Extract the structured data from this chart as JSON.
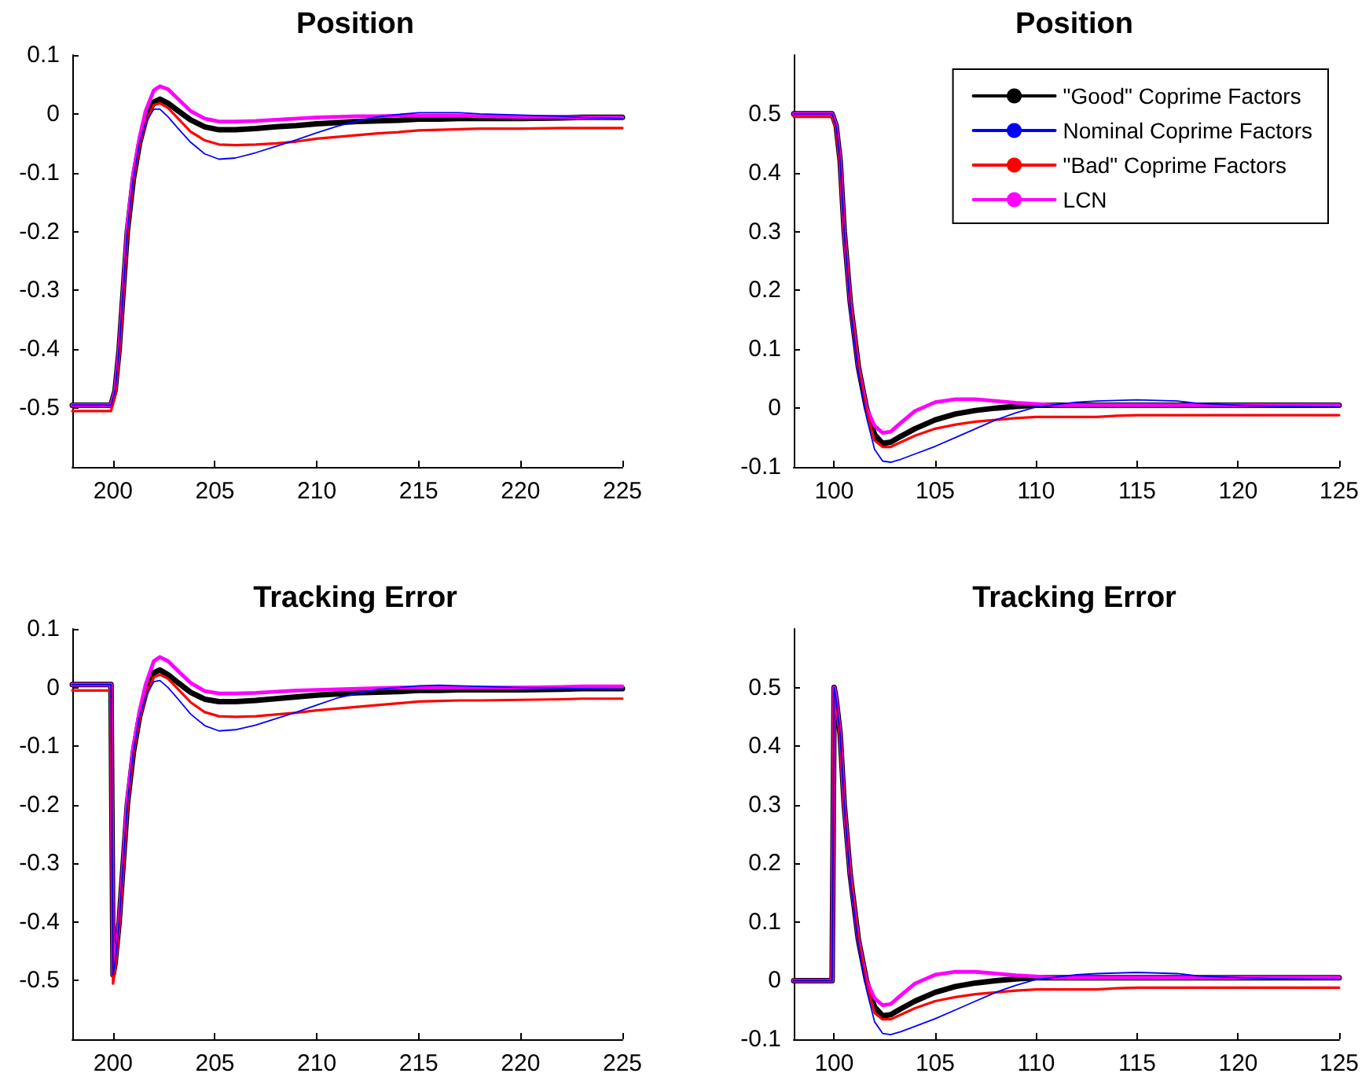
{
  "chart_data": [
    {
      "type": "line",
      "title": "Position",
      "xlim": [
        198,
        225
      ],
      "xticks": [
        200,
        205,
        210,
        215,
        220,
        225
      ],
      "ylim": [
        -0.6,
        0.1
      ],
      "yticks": [
        -0.5,
        -0.4,
        -0.3,
        -0.2,
        -0.1,
        0,
        0.1
      ],
      "grid": false,
      "marker": "none",
      "line_style": "solid",
      "x": [
        198,
        199.9,
        200.1,
        200.3,
        200.5,
        200.7,
        201,
        201.3,
        201.6,
        202,
        202.3,
        202.7,
        203.2,
        203.8,
        204.5,
        205.2,
        206,
        207,
        208,
        209,
        210,
        211,
        212,
        213,
        214,
        215,
        216,
        217,
        218,
        220,
        222,
        223,
        225
      ],
      "series": [
        {
          "color": "#000000",
          "values": [
            -0.495,
            -0.495,
            -0.47,
            -0.4,
            -0.3,
            -0.2,
            -0.11,
            -0.05,
            -0.01,
            0.02,
            0.025,
            0.018,
            0.005,
            -0.01,
            -0.022,
            -0.027,
            -0.027,
            -0.025,
            -0.022,
            -0.02,
            -0.017,
            -0.015,
            -0.013,
            -0.012,
            -0.011,
            -0.009,
            -0.009,
            -0.008,
            -0.008,
            -0.008,
            -0.007,
            -0.006,
            -0.006
          ]
        },
        {
          "color": "#0000ff",
          "values": [
            -0.495,
            -0.495,
            -0.47,
            -0.4,
            -0.3,
            -0.2,
            -0.11,
            -0.05,
            -0.015,
            0.008,
            0.008,
            -0.005,
            -0.025,
            -0.048,
            -0.068,
            -0.077,
            -0.075,
            -0.066,
            -0.055,
            -0.044,
            -0.032,
            -0.021,
            -0.012,
            -0.005,
            -0.001,
            0.002,
            0.002,
            0.002,
            0,
            -0.002,
            -0.004,
            -0.006,
            -0.008
          ]
        },
        {
          "color": "#ff0000",
          "values": [
            -0.505,
            -0.505,
            -0.48,
            -0.41,
            -0.31,
            -0.21,
            -0.115,
            -0.055,
            -0.015,
            0.015,
            0.018,
            0.01,
            -0.008,
            -0.03,
            -0.045,
            -0.052,
            -0.053,
            -0.052,
            -0.05,
            -0.047,
            -0.042,
            -0.039,
            -0.036,
            -0.033,
            -0.031,
            -0.028,
            -0.027,
            -0.026,
            -0.025,
            -0.025,
            -0.024,
            -0.024,
            -0.024
          ]
        },
        {
          "color": "#ff00ff",
          "values": [
            -0.495,
            -0.495,
            -0.47,
            -0.4,
            -0.3,
            -0.19,
            -0.1,
            -0.04,
            0.005,
            0.04,
            0.047,
            0.042,
            0.025,
            0.005,
            -0.008,
            -0.013,
            -0.013,
            -0.012,
            -0.01,
            -0.008,
            -0.006,
            -0.005,
            -0.004,
            -0.004,
            -0.003,
            -0.003,
            -0.003,
            -0.003,
            -0.004,
            -0.005,
            -0.005,
            -0.006,
            -0.006
          ]
        }
      ]
    },
    {
      "type": "line",
      "title": "Position",
      "xlim": [
        98,
        125
      ],
      "xticks": [
        100,
        105,
        110,
        115,
        120,
        125
      ],
      "ylim": [
        -0.1,
        0.6
      ],
      "yticks": [
        -0.1,
        0,
        0.1,
        0.2,
        0.3,
        0.4,
        0.5
      ],
      "grid": false,
      "marker": "none",
      "line_style": "solid",
      "legend": "top right",
      "x": [
        98,
        99.9,
        100.1,
        100.3,
        100.5,
        100.8,
        101.2,
        101.6,
        102,
        102.4,
        102.8,
        103.3,
        104,
        105,
        106,
        107,
        108,
        109,
        110,
        111,
        112,
        113,
        114,
        115,
        116,
        117,
        118,
        120,
        122,
        125
      ],
      "series": [
        {
          "name": "\"Good\" Coprime Factors",
          "color": "#000000",
          "values": [
            0.5,
            0.5,
            0.48,
            0.42,
            0.3,
            0.18,
            0.07,
            0,
            -0.045,
            -0.06,
            -0.058,
            -0.048,
            -0.035,
            -0.02,
            -0.01,
            -0.004,
            0,
            0.003,
            0.005,
            0.005,
            0.005,
            0.005,
            0.005,
            0.005,
            0.005,
            0.005,
            0.005,
            0.005,
            0.005,
            0.005
          ]
        },
        {
          "name": "Nominal Coprime Factors",
          "color": "#0000ff",
          "values": [
            0.5,
            0.5,
            0.48,
            0.42,
            0.3,
            0.17,
            0.06,
            -0.015,
            -0.07,
            -0.09,
            -0.092,
            -0.087,
            -0.078,
            -0.065,
            -0.05,
            -0.035,
            -0.02,
            -0.008,
            0.002,
            0.006,
            0.01,
            0.012,
            0.013,
            0.014,
            0.013,
            0.012,
            0.008,
            0.005,
            0.003,
            0.002
          ]
        },
        {
          "name": "\"Bad\" Coprime Factors",
          "color": "#ff0000",
          "values": [
            0.495,
            0.495,
            0.475,
            0.415,
            0.3,
            0.18,
            0.07,
            -0.005,
            -0.055,
            -0.066,
            -0.066,
            -0.058,
            -0.047,
            -0.035,
            -0.028,
            -0.023,
            -0.02,
            -0.017,
            -0.015,
            -0.015,
            -0.015,
            -0.015,
            -0.013,
            -0.012,
            -0.012,
            -0.012,
            -0.012,
            -0.012,
            -0.012,
            -0.012
          ]
        },
        {
          "name": "LCN",
          "color": "#ff00ff",
          "values": [
            0.5,
            0.5,
            0.48,
            0.42,
            0.3,
            0.18,
            0.07,
            0,
            -0.03,
            -0.042,
            -0.04,
            -0.025,
            -0.005,
            0.01,
            0.015,
            0.015,
            0.012,
            0.009,
            0.007,
            0.005,
            0.005,
            0.005,
            0.005,
            0.005,
            0.005,
            0.005,
            0.005,
            0.005,
            0.005,
            0.005
          ]
        }
      ]
    },
    {
      "type": "line",
      "title": "Tracking Error",
      "xlim": [
        198,
        225
      ],
      "xticks": [
        200,
        205,
        210,
        215,
        220,
        225
      ],
      "ylim": [
        -0.6,
        0.1
      ],
      "yticks": [
        -0.5,
        -0.4,
        -0.3,
        -0.2,
        -0.1,
        0,
        0.1
      ],
      "grid": false,
      "marker": "none",
      "line_style": "solid",
      "x": [
        198,
        199.9,
        200,
        200.1,
        200.3,
        200.5,
        200.7,
        201,
        201.3,
        201.6,
        202,
        202.3,
        202.7,
        203.2,
        203.8,
        204.5,
        205.2,
        206,
        207,
        208,
        209,
        210,
        211,
        212,
        213,
        214,
        215,
        216,
        217,
        218,
        220,
        222,
        223,
        225
      ],
      "series": [
        {
          "color": "#000000",
          "values": [
            0.005,
            0.005,
            -0.49,
            -0.47,
            -0.4,
            -0.3,
            -0.2,
            -0.11,
            -0.05,
            -0.01,
            0.025,
            0.03,
            0.022,
            0.008,
            -0.008,
            -0.02,
            -0.024,
            -0.024,
            -0.022,
            -0.019,
            -0.016,
            -0.013,
            -0.011,
            -0.009,
            -0.008,
            -0.007,
            -0.005,
            -0.005,
            -0.004,
            -0.004,
            -0.004,
            -0.003,
            -0.002,
            -0.002
          ]
        },
        {
          "color": "#0000ff",
          "values": [
            0.005,
            0.005,
            -0.49,
            -0.47,
            -0.4,
            -0.3,
            -0.2,
            -0.11,
            -0.05,
            -0.015,
            0.01,
            0.012,
            0,
            -0.02,
            -0.045,
            -0.065,
            -0.074,
            -0.072,
            -0.064,
            -0.053,
            -0.042,
            -0.03,
            -0.018,
            -0.01,
            -0.003,
            0,
            0.003,
            0.004,
            0.003,
            0.002,
            0,
            -0.001,
            -0.002,
            -0.003
          ]
        },
        {
          "color": "#ff0000",
          "values": [
            -0.005,
            -0.005,
            -0.505,
            -0.48,
            -0.41,
            -0.31,
            -0.21,
            -0.115,
            -0.055,
            -0.015,
            0.018,
            0.022,
            0.015,
            -0.003,
            -0.025,
            -0.042,
            -0.049,
            -0.05,
            -0.049,
            -0.046,
            -0.043,
            -0.039,
            -0.036,
            -0.033,
            -0.03,
            -0.027,
            -0.024,
            -0.023,
            -0.022,
            -0.022,
            -0.021,
            -0.02,
            -0.019,
            -0.019
          ]
        },
        {
          "color": "#ff00ff",
          "values": [
            0.005,
            0.005,
            -0.49,
            -0.47,
            -0.4,
            -0.3,
            -0.19,
            -0.1,
            -0.04,
            0.005,
            0.045,
            0.052,
            0.045,
            0.028,
            0.008,
            -0.006,
            -0.01,
            -0.01,
            -0.009,
            -0.007,
            -0.005,
            -0.004,
            -0.003,
            -0.002,
            -0.001,
            0,
            0,
            0,
            0,
            0,
            0,
            0.001,
            0.002,
            0.002
          ]
        }
      ]
    },
    {
      "type": "line",
      "title": "Tracking Error",
      "xlim": [
        98,
        125
      ],
      "xticks": [
        100,
        105,
        110,
        115,
        120,
        125
      ],
      "ylim": [
        -0.1,
        0.6
      ],
      "yticks": [
        -0.1,
        0,
        0.1,
        0.2,
        0.3,
        0.4,
        0.5
      ],
      "grid": false,
      "marker": "none",
      "line_style": "solid",
      "x": [
        98,
        99.9,
        100,
        100.1,
        100.3,
        100.5,
        100.8,
        101.2,
        101.6,
        102,
        102.4,
        102.8,
        103.3,
        104,
        105,
        106,
        107,
        108,
        109,
        110,
        111,
        112,
        113,
        114,
        115,
        116,
        117,
        118,
        120,
        122,
        125
      ],
      "series": [
        {
          "color": "#000000",
          "values": [
            0,
            0,
            0.5,
            0.48,
            0.42,
            0.3,
            0.18,
            0.07,
            0,
            -0.045,
            -0.06,
            -0.058,
            -0.048,
            -0.035,
            -0.02,
            -0.01,
            -0.004,
            0,
            0.003,
            0.005,
            0.005,
            0.005,
            0.005,
            0.005,
            0.005,
            0.005,
            0.005,
            0.005,
            0.005,
            0.005,
            0.005
          ]
        },
        {
          "color": "#0000ff",
          "values": [
            0,
            0,
            0.5,
            0.48,
            0.42,
            0.3,
            0.17,
            0.06,
            -0.015,
            -0.07,
            -0.09,
            -0.092,
            -0.087,
            -0.078,
            -0.065,
            -0.05,
            -0.035,
            -0.02,
            -0.008,
            0.002,
            0.006,
            0.01,
            0.012,
            0.013,
            0.014,
            0.013,
            0.012,
            0.008,
            0.005,
            0.003,
            0.002
          ]
        },
        {
          "color": "#ff0000",
          "values": [
            0,
            0,
            0.49,
            0.475,
            0.415,
            0.3,
            0.18,
            0.07,
            -0.005,
            -0.055,
            -0.066,
            -0.066,
            -0.058,
            -0.047,
            -0.035,
            -0.028,
            -0.023,
            -0.02,
            -0.017,
            -0.015,
            -0.015,
            -0.015,
            -0.015,
            -0.013,
            -0.012,
            -0.012,
            -0.012,
            -0.012,
            -0.012,
            -0.012,
            -0.012
          ]
        },
        {
          "color": "#ff00ff",
          "values": [
            0,
            0,
            0.5,
            0.48,
            0.42,
            0.3,
            0.18,
            0.07,
            0,
            -0.03,
            -0.042,
            -0.04,
            -0.025,
            -0.005,
            0.01,
            0.015,
            0.015,
            0.012,
            0.009,
            0.007,
            0.005,
            0.005,
            0.005,
            0.005,
            0.005,
            0.005,
            0.005,
            0.005,
            0.005,
            0.005,
            0.005
          ]
        }
      ]
    }
  ]
}
